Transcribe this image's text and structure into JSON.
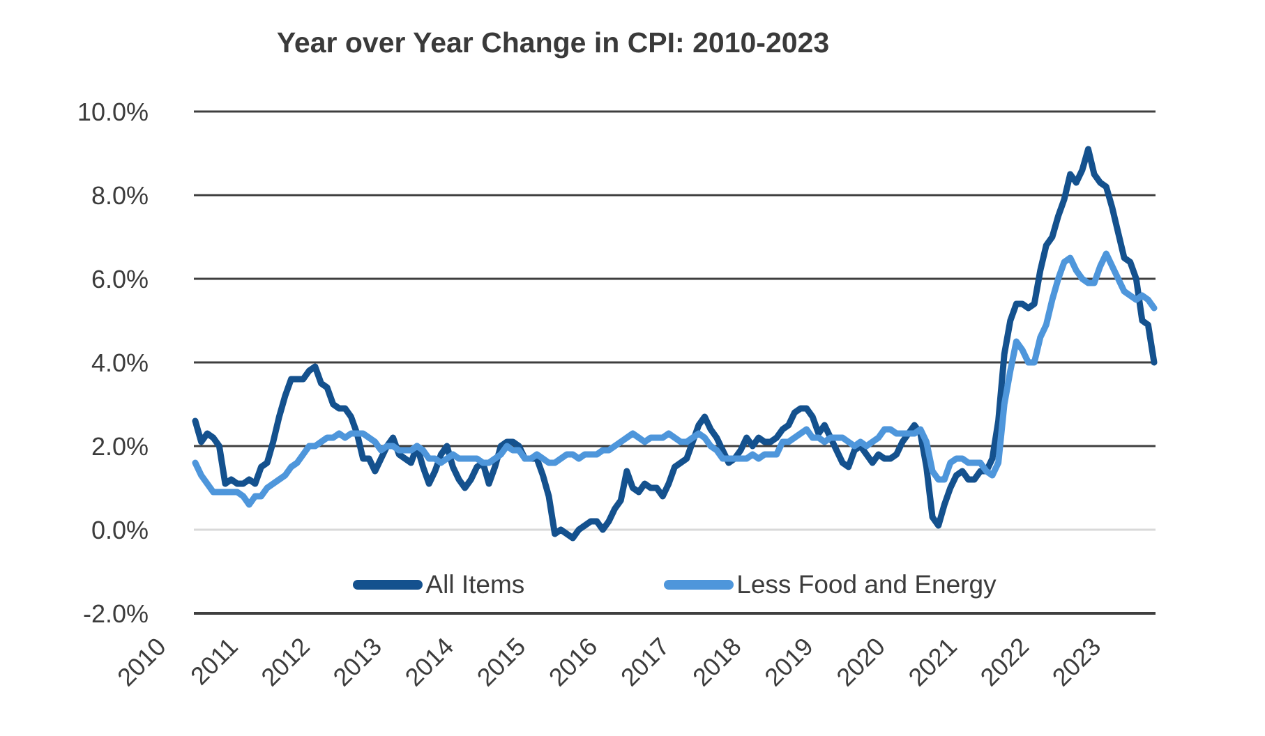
{
  "chart_data": {
    "type": "line",
    "title": "Year over Year Change in CPI: 2010-2023",
    "x_start": {
      "year": 2010,
      "month": 1
    },
    "x_frequency": "monthly",
    "x_end": {
      "year": 2023,
      "month": 5
    },
    "x_tick_values": [
      2010,
      2011,
      2012,
      2013,
      2014,
      2015,
      2016,
      2017,
      2018,
      2019,
      2020,
      2021,
      2022,
      2023
    ],
    "x_tick_labels": [
      "2010",
      "2011",
      "2012",
      "2013",
      "2014",
      "2015",
      "2016",
      "2017",
      "2018",
      "2019",
      "2020",
      "2021",
      "2022",
      "2023"
    ],
    "y_ticks": [
      {
        "value": 10,
        "label": "10.0%"
      },
      {
        "value": 8,
        "label": "8.0%"
      },
      {
        "value": 6,
        "label": "6.0%"
      },
      {
        "value": 4,
        "label": "4.0%"
      },
      {
        "value": 2,
        "label": "2.0%"
      },
      {
        "value": 0,
        "label": "0.0%"
      },
      {
        "value": -2,
        "label": "-2.0%"
      }
    ],
    "ylim": [
      -2,
      10
    ],
    "grid": "horizontal",
    "gridline_color": "#3f3f3f",
    "zero_line_color": "#d9d9d9",
    "axis_line_color": "#3f3f3f",
    "text_color": "#3c3c3c",
    "legend_position": "bottom-inside",
    "series": [
      {
        "name": "All Items",
        "color": "#14518E",
        "values": [
          2.6,
          2.1,
          2.3,
          2.2,
          2.0,
          1.1,
          1.2,
          1.1,
          1.1,
          1.2,
          1.1,
          1.5,
          1.6,
          2.1,
          2.7,
          3.2,
          3.6,
          3.6,
          3.6,
          3.8,
          3.9,
          3.5,
          3.4,
          3.0,
          2.9,
          2.9,
          2.7,
          2.3,
          1.7,
          1.7,
          1.4,
          1.7,
          2.0,
          2.2,
          1.8,
          1.7,
          1.6,
          2.0,
          1.5,
          1.1,
          1.4,
          1.8,
          2.0,
          1.5,
          1.2,
          1.0,
          1.2,
          1.5,
          1.6,
          1.1,
          1.5,
          2.0,
          2.1,
          2.1,
          2.0,
          1.7,
          1.7,
          1.7,
          1.3,
          0.8,
          -0.1,
          0.0,
          -0.1,
          -0.2,
          0.0,
          0.1,
          0.2,
          0.2,
          0.0,
          0.2,
          0.5,
          0.7,
          1.4,
          1.0,
          0.9,
          1.1,
          1.0,
          1.0,
          0.8,
          1.1,
          1.5,
          1.6,
          1.7,
          2.1,
          2.5,
          2.7,
          2.4,
          2.2,
          1.9,
          1.6,
          1.7,
          1.9,
          2.2,
          2.0,
          2.2,
          2.1,
          2.1,
          2.2,
          2.4,
          2.5,
          2.8,
          2.9,
          2.9,
          2.7,
          2.3,
          2.5,
          2.2,
          1.9,
          1.6,
          1.5,
          1.9,
          2.0,
          1.8,
          1.6,
          1.8,
          1.7,
          1.7,
          1.8,
          2.1,
          2.3,
          2.5,
          2.3,
          1.5,
          0.3,
          0.1,
          0.6,
          1.0,
          1.3,
          1.4,
          1.2,
          1.2,
          1.4,
          1.4,
          1.7,
          2.6,
          4.2,
          5.0,
          5.4,
          5.4,
          5.3,
          5.4,
          6.2,
          6.8,
          7.0,
          7.5,
          7.9,
          8.5,
          8.3,
          8.6,
          9.1,
          8.5,
          8.3,
          8.2,
          7.7,
          7.1,
          6.5,
          6.4,
          6.0,
          5.0,
          4.9,
          4.0
        ]
      },
      {
        "name": "Less Food and Energy",
        "color": "#4E96DB",
        "values": [
          1.6,
          1.3,
          1.1,
          0.9,
          0.9,
          0.9,
          0.9,
          0.9,
          0.8,
          0.6,
          0.8,
          0.8,
          1.0,
          1.1,
          1.2,
          1.3,
          1.5,
          1.6,
          1.8,
          2.0,
          2.0,
          2.1,
          2.2,
          2.2,
          2.3,
          2.2,
          2.3,
          2.3,
          2.3,
          2.2,
          2.1,
          1.9,
          2.0,
          2.0,
          1.9,
          1.9,
          1.9,
          2.0,
          1.9,
          1.7,
          1.7,
          1.6,
          1.7,
          1.8,
          1.7,
          1.7,
          1.7,
          1.7,
          1.6,
          1.6,
          1.7,
          1.8,
          2.0,
          1.9,
          1.9,
          1.7,
          1.7,
          1.8,
          1.7,
          1.6,
          1.6,
          1.7,
          1.8,
          1.8,
          1.7,
          1.8,
          1.8,
          1.8,
          1.9,
          1.9,
          2.0,
          2.1,
          2.2,
          2.3,
          2.2,
          2.1,
          2.2,
          2.2,
          2.2,
          2.3,
          2.2,
          2.1,
          2.1,
          2.2,
          2.3,
          2.2,
          2.0,
          1.9,
          1.7,
          1.7,
          1.7,
          1.7,
          1.7,
          1.8,
          1.7,
          1.8,
          1.8,
          1.8,
          2.1,
          2.1,
          2.2,
          2.3,
          2.4,
          2.2,
          2.2,
          2.1,
          2.2,
          2.2,
          2.2,
          2.1,
          2.0,
          2.1,
          2.0,
          2.1,
          2.2,
          2.4,
          2.4,
          2.3,
          2.3,
          2.3,
          2.3,
          2.4,
          2.1,
          1.4,
          1.2,
          1.2,
          1.6,
          1.7,
          1.7,
          1.6,
          1.6,
          1.6,
          1.4,
          1.3,
          1.6,
          3.0,
          3.8,
          4.5,
          4.3,
          4.0,
          4.0,
          4.6,
          4.9,
          5.5,
          6.0,
          6.4,
          6.5,
          6.2,
          6.0,
          5.9,
          5.9,
          6.3,
          6.6,
          6.3,
          6.0,
          5.7,
          5.6,
          5.5,
          5.6,
          5.5,
          5.3
        ]
      }
    ]
  }
}
